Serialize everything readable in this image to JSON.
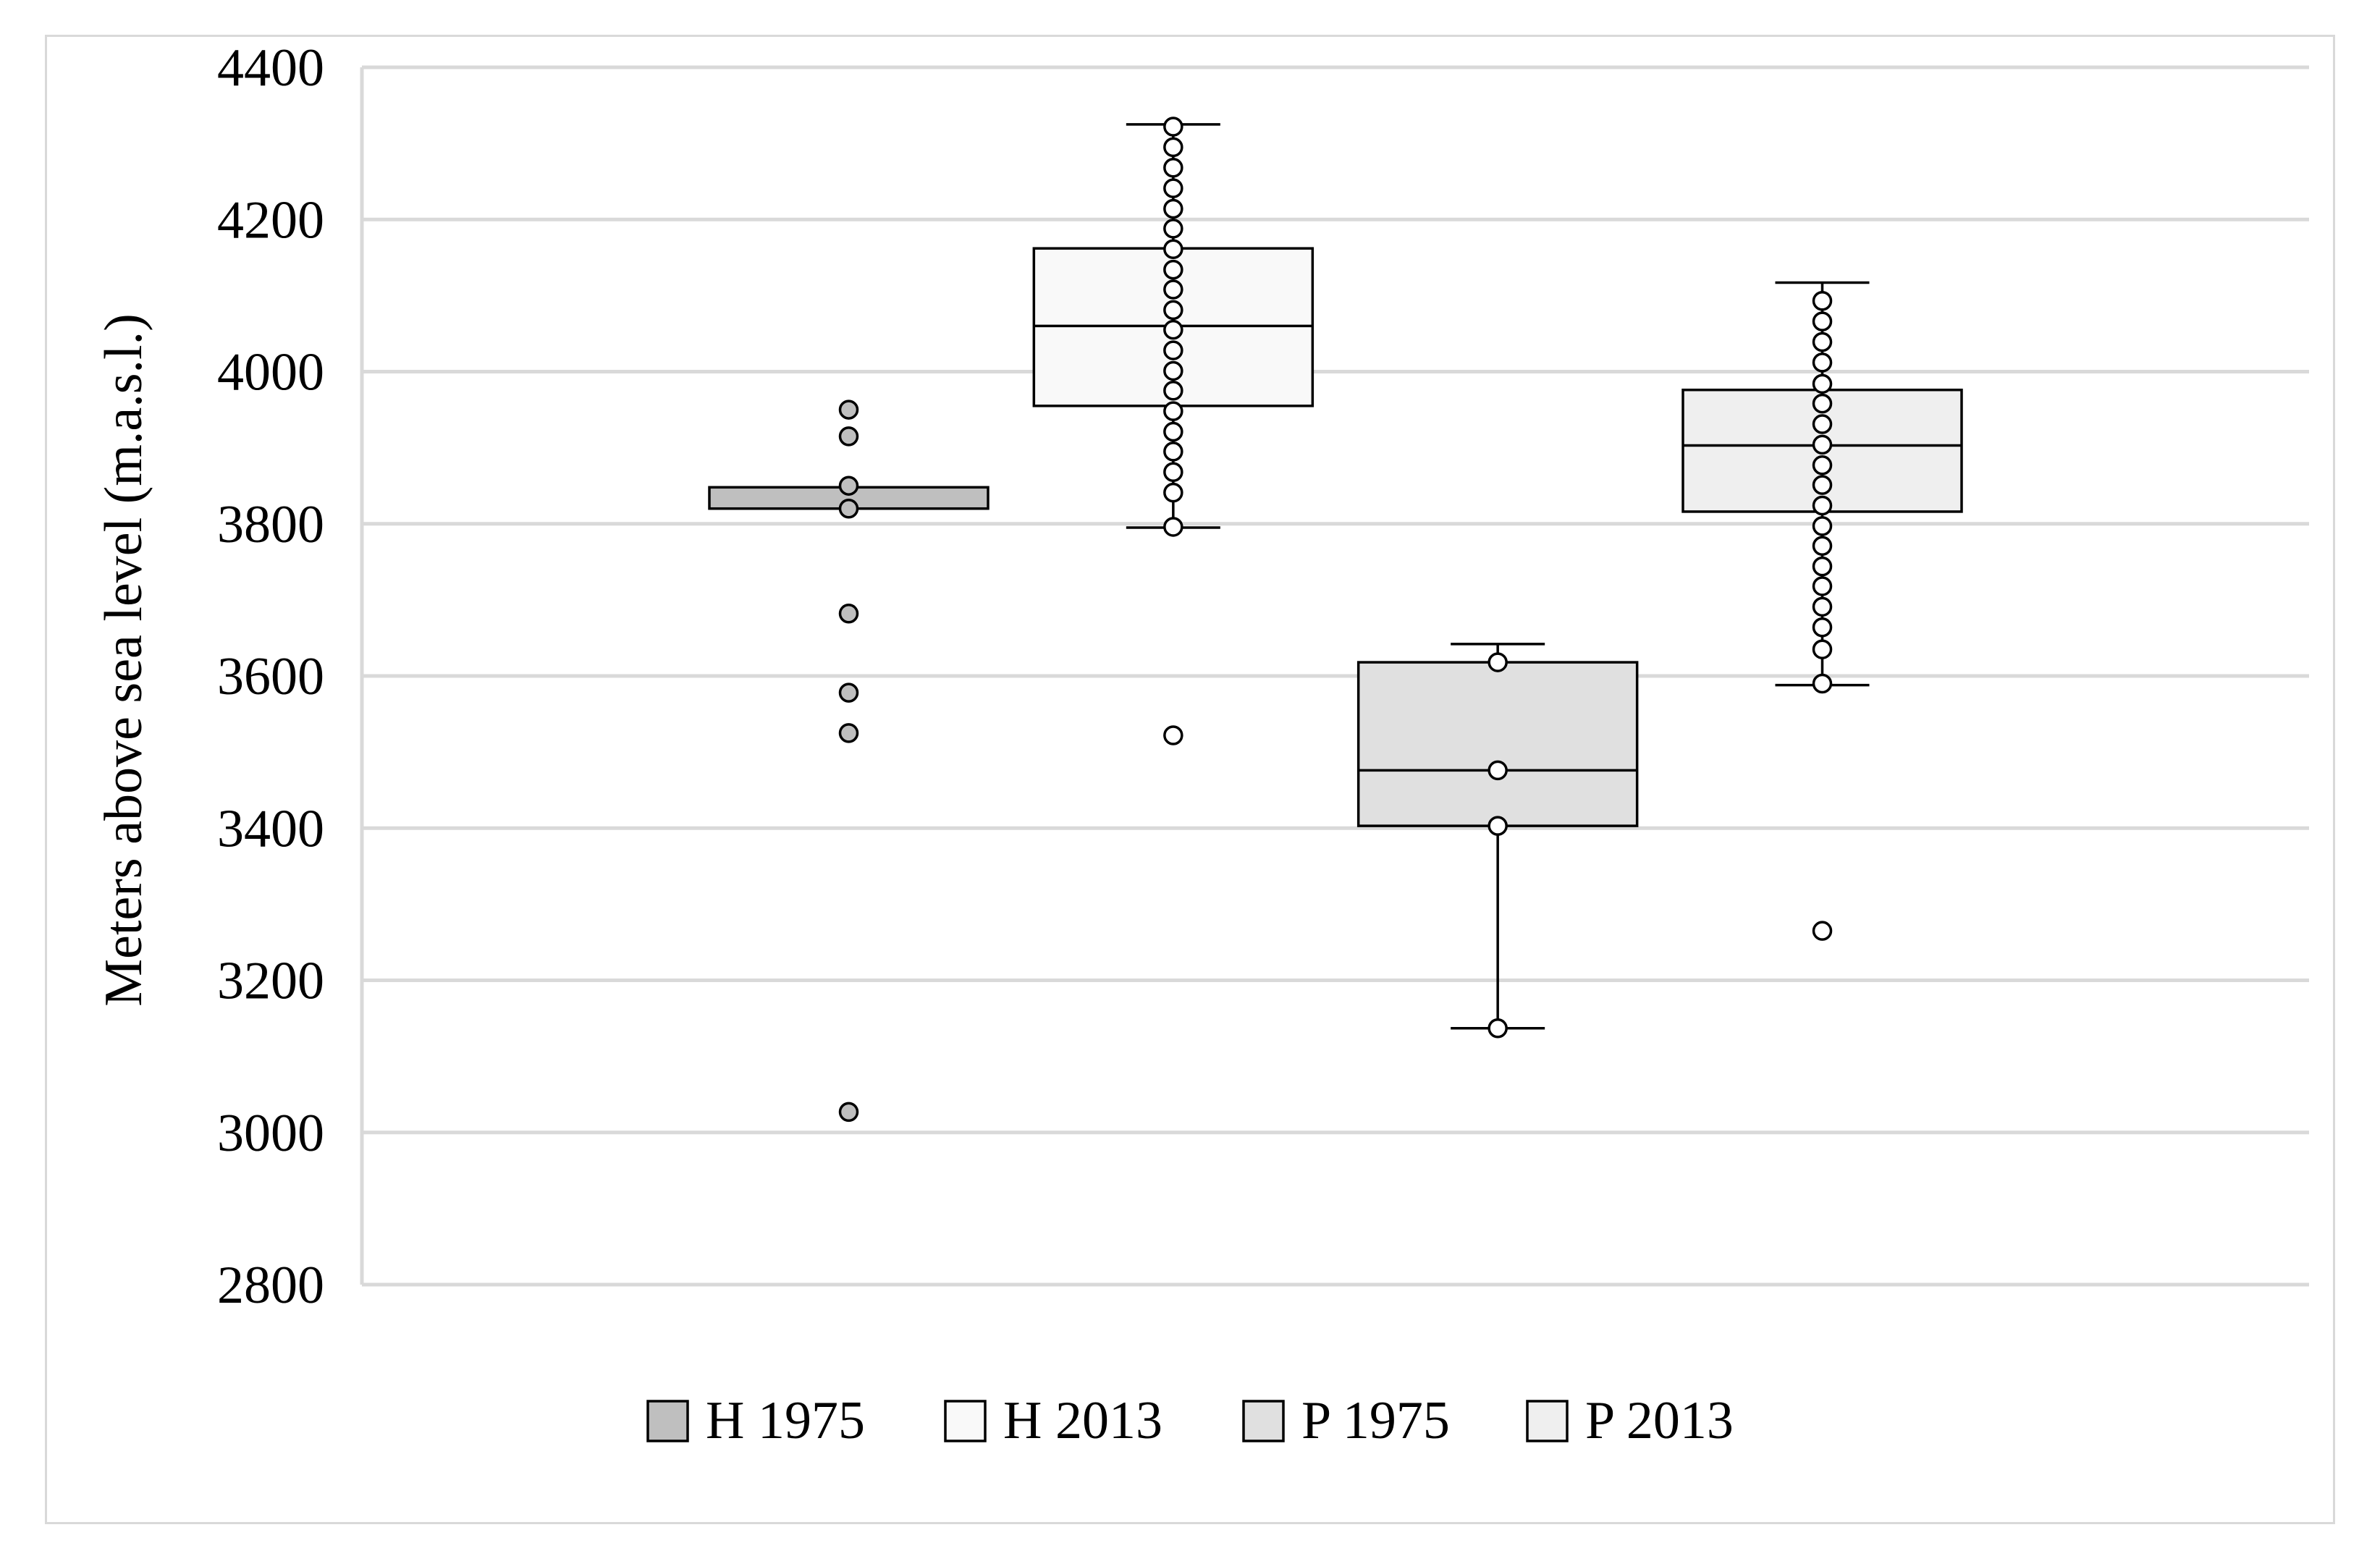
{
  "chart_data": {
    "type": "box",
    "title": "",
    "xlabel": "",
    "ylabel": "Meters above sea level (m.a.s.l.)",
    "ylim": [
      2800,
      4400
    ],
    "yticks": [
      2800,
      3000,
      3200,
      3400,
      3600,
      3800,
      4000,
      4200,
      4400
    ],
    "grid": "horizontal",
    "legend_position": "bottom",
    "series": [
      {
        "name": "H 1975",
        "fill": "#bfbfbf",
        "point_fill": "#bfbfbf",
        "whisker_low": null,
        "q1": 3820,
        "median": 3820,
        "q3": 3848,
        "whisker_high": null,
        "points": [
          3950,
          3915,
          3850,
          3820,
          3682,
          3578,
          3525,
          3027
        ]
      },
      {
        "name": "H 2013",
        "fill": "#f9f9f9",
        "point_fill": "#ffffff",
        "whisker_low": 3795,
        "q1": 3955,
        "median": 4060,
        "q3": 4162,
        "whisker_high": 4325,
        "points": [
          4322,
          4295,
          4268,
          4241,
          4214,
          4188,
          4161,
          4134,
          4108,
          4081,
          4055,
          4028,
          4001,
          3975,
          3948,
          3921,
          3895,
          3868,
          3841,
          3796,
          3522
        ]
      },
      {
        "name": "P 1975",
        "fill": "#e0e0e0",
        "point_fill": "#ffffff",
        "whisker_low": 3137,
        "q1": 3403,
        "median": 3476,
        "q3": 3618,
        "whisker_high": 3642,
        "points": [
          3618,
          3476,
          3403,
          3137
        ]
      },
      {
        "name": "P 2013",
        "fill": "#efefef",
        "point_fill": "#ffffff",
        "whisker_low": 3588,
        "q1": 3816,
        "median": 3903,
        "q3": 3976,
        "whisker_high": 4117,
        "points": [
          4093,
          4066,
          4039,
          4012,
          3984,
          3958,
          3931,
          3904,
          3877,
          3851,
          3824,
          3797,
          3771,
          3744,
          3718,
          3691,
          3664,
          3635,
          3590,
          3265
        ]
      }
    ]
  }
}
